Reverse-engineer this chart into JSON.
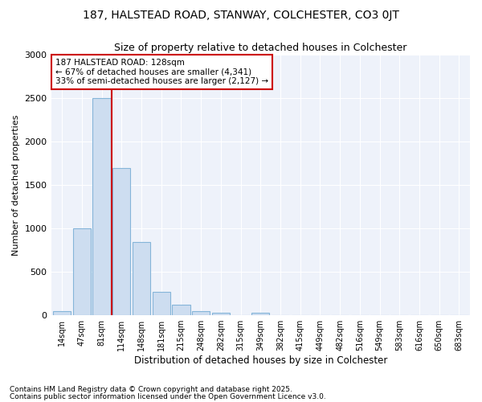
{
  "title1": "187, HALSTEAD ROAD, STANWAY, COLCHESTER, CO3 0JT",
  "title2": "Size of property relative to detached houses in Colchester",
  "xlabel": "Distribution of detached houses by size in Colchester",
  "ylabel": "Number of detached properties",
  "bar_values": [
    50,
    1000,
    2500,
    1700,
    840,
    270,
    120,
    50,
    30,
    5,
    30,
    5,
    5,
    3,
    2,
    2,
    2,
    1,
    1,
    1,
    1
  ],
  "bar_labels": [
    "14sqm",
    "47sqm",
    "81sqm",
    "114sqm",
    "148sqm",
    "181sqm",
    "215sqm",
    "248sqm",
    "282sqm",
    "315sqm",
    "349sqm",
    "382sqm",
    "415sqm",
    "449sqm",
    "482sqm",
    "516sqm",
    "549sqm",
    "583sqm",
    "616sqm",
    "650sqm",
    "683sqm"
  ],
  "bar_color": "#cdddf0",
  "bar_edgecolor": "#85b5d9",
  "vline_x": 2.5,
  "vline_color": "#cc0000",
  "annotation_title": "187 HALSTEAD ROAD: 128sqm",
  "annotation_line1": "← 67% of detached houses are smaller (4,341)",
  "annotation_line2": "33% of semi-detached houses are larger (2,127) →",
  "annotation_box_color": "#cc0000",
  "ylim": [
    0,
    3000
  ],
  "yticks": [
    0,
    500,
    1000,
    1500,
    2000,
    2500,
    3000
  ],
  "background_color": "#eef2fa",
  "footer1": "Contains HM Land Registry data © Crown copyright and database right 2025.",
  "footer2": "Contains public sector information licensed under the Open Government Licence v3.0.",
  "num_bins": 21
}
